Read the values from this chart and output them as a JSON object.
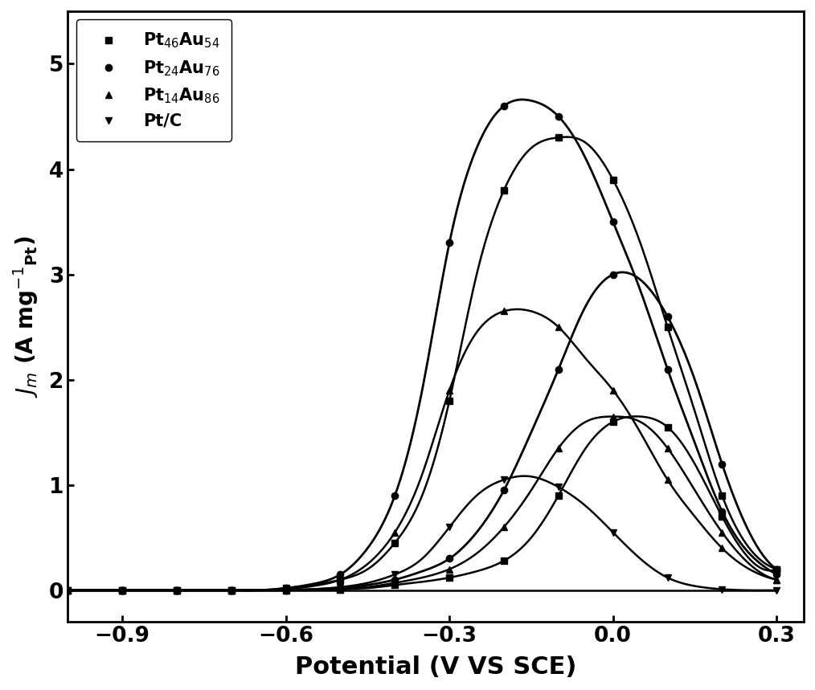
{
  "title": "",
  "xlabel": "Potential (V VS SCE)",
  "ylabel": "J_m (A mg^-1_Pt)",
  "xlim": [
    -1.0,
    0.35
  ],
  "ylim": [
    -0.3,
    5.5
  ],
  "xticks": [
    -0.9,
    -0.6,
    -0.3,
    0.0,
    0.3
  ],
  "yticks": [
    0,
    1,
    2,
    3,
    4,
    5
  ],
  "background_color": "#ffffff",
  "series": [
    {
      "label": "Pt$_{46}$Au$_{54}$",
      "color": "#000000",
      "marker": "s",
      "markersize": 6,
      "linewidth": 1.8,
      "linestyle": "-",
      "forward_x": [
        -1.0,
        -0.95,
        -0.9,
        -0.85,
        -0.8,
        -0.75,
        -0.7,
        -0.65,
        -0.6,
        -0.55,
        -0.5,
        -0.45,
        -0.4,
        -0.35,
        -0.3,
        -0.25,
        -0.2,
        -0.15,
        -0.1,
        -0.05,
        0.0,
        0.05,
        0.1,
        0.15,
        0.2,
        0.25,
        0.3
      ],
      "forward_y": [
        0.0,
        0.0,
        0.0,
        0.0,
        0.0,
        0.0,
        0.0,
        0.0,
        0.02,
        0.05,
        0.1,
        0.2,
        0.45,
        0.9,
        1.8,
        3.0,
        3.8,
        4.2,
        4.3,
        4.25,
        3.9,
        3.3,
        2.5,
        1.7,
        0.9,
        0.4,
        0.2
      ],
      "backward_x": [
        -1.0,
        -0.95,
        -0.9,
        -0.85,
        -0.8,
        -0.75,
        -0.7,
        -0.65,
        -0.6,
        -0.55,
        -0.5,
        -0.45,
        -0.4,
        -0.35,
        -0.3,
        -0.25,
        -0.2,
        -0.15,
        -0.1,
        -0.05,
        0.0,
        0.05,
        0.1,
        0.15,
        0.2,
        0.25,
        0.3
      ],
      "backward_y": [
        0.0,
        0.0,
        0.0,
        0.0,
        0.0,
        0.0,
        0.0,
        0.0,
        0.0,
        0.0,
        0.01,
        0.02,
        0.05,
        0.08,
        0.12,
        0.18,
        0.28,
        0.5,
        0.9,
        1.35,
        1.6,
        1.65,
        1.55,
        1.2,
        0.7,
        0.3,
        0.2
      ]
    },
    {
      "label": "Pt$_{24}$Au$_{76}$",
      "color": "#000000",
      "marker": "o",
      "markersize": 6,
      "linewidth": 2.0,
      "linestyle": "-",
      "forward_x": [
        -1.0,
        -0.95,
        -0.9,
        -0.85,
        -0.8,
        -0.75,
        -0.7,
        -0.65,
        -0.6,
        -0.55,
        -0.5,
        -0.45,
        -0.4,
        -0.35,
        -0.3,
        -0.25,
        -0.2,
        -0.15,
        -0.1,
        -0.05,
        0.0,
        0.05,
        0.1,
        0.15,
        0.2,
        0.25,
        0.3
      ],
      "forward_y": [
        0.0,
        0.0,
        0.0,
        0.0,
        0.0,
        0.0,
        0.0,
        0.0,
        0.02,
        0.06,
        0.15,
        0.4,
        0.9,
        1.9,
        3.3,
        4.2,
        4.6,
        4.65,
        4.5,
        4.1,
        3.5,
        2.85,
        2.1,
        1.4,
        0.75,
        0.35,
        0.15
      ],
      "backward_x": [
        -1.0,
        -0.95,
        -0.9,
        -0.85,
        -0.8,
        -0.75,
        -0.7,
        -0.65,
        -0.6,
        -0.55,
        -0.5,
        -0.45,
        -0.4,
        -0.35,
        -0.3,
        -0.25,
        -0.2,
        -0.15,
        -0.1,
        -0.05,
        0.0,
        0.05,
        0.1,
        0.15,
        0.2,
        0.25,
        0.3
      ],
      "backward_y": [
        0.0,
        0.0,
        0.0,
        0.0,
        0.0,
        0.0,
        0.0,
        0.0,
        0.0,
        0.01,
        0.02,
        0.05,
        0.1,
        0.18,
        0.3,
        0.55,
        0.95,
        1.5,
        2.1,
        2.7,
        3.0,
        2.95,
        2.6,
        2.0,
        1.2,
        0.55,
        0.2
      ]
    },
    {
      "label": "Pt$_{14}$Au$_{86}$",
      "color": "#000000",
      "marker": "^",
      "markersize": 6,
      "linewidth": 1.8,
      "linestyle": "-",
      "forward_x": [
        -1.0,
        -0.95,
        -0.9,
        -0.85,
        -0.8,
        -0.75,
        -0.7,
        -0.65,
        -0.6,
        -0.55,
        -0.5,
        -0.45,
        -0.4,
        -0.35,
        -0.3,
        -0.25,
        -0.2,
        -0.15,
        -0.1,
        -0.05,
        0.0,
        0.05,
        0.1,
        0.15,
        0.2,
        0.25,
        0.3
      ],
      "forward_y": [
        0.0,
        0.0,
        0.0,
        0.0,
        0.0,
        0.0,
        0.0,
        0.0,
        0.01,
        0.04,
        0.1,
        0.25,
        0.55,
        1.1,
        1.9,
        2.45,
        2.65,
        2.65,
        2.5,
        2.2,
        1.9,
        1.5,
        1.05,
        0.7,
        0.4,
        0.2,
        0.1
      ],
      "backward_x": [
        -1.0,
        -0.95,
        -0.9,
        -0.85,
        -0.8,
        -0.75,
        -0.7,
        -0.65,
        -0.6,
        -0.55,
        -0.5,
        -0.45,
        -0.4,
        -0.35,
        -0.3,
        -0.25,
        -0.2,
        -0.15,
        -0.1,
        -0.05,
        0.0,
        0.05,
        0.1,
        0.15,
        0.2,
        0.25,
        0.3
      ],
      "backward_y": [
        0.0,
        0.0,
        0.0,
        0.0,
        0.0,
        0.0,
        0.0,
        0.0,
        0.0,
        0.0,
        0.01,
        0.03,
        0.07,
        0.12,
        0.2,
        0.35,
        0.6,
        0.95,
        1.35,
        1.6,
        1.65,
        1.6,
        1.35,
        0.95,
        0.55,
        0.25,
        0.1
      ]
    },
    {
      "label": "Pt/C",
      "color": "#000000",
      "marker": "v",
      "markersize": 6,
      "linewidth": 1.8,
      "linestyle": "-",
      "forward_x": [
        -1.0,
        -0.95,
        -0.9,
        -0.85,
        -0.8,
        -0.75,
        -0.7,
        -0.65,
        -0.6,
        -0.55,
        -0.5,
        -0.45,
        -0.4,
        -0.35,
        -0.3,
        -0.25,
        -0.2,
        -0.15,
        -0.1,
        -0.05,
        0.0,
        0.05,
        0.1,
        0.15,
        0.2,
        0.25,
        0.3
      ],
      "forward_y": [
        0.0,
        0.0,
        0.0,
        0.0,
        0.0,
        0.0,
        0.0,
        0.0,
        0.0,
        0.01,
        0.03,
        0.07,
        0.15,
        0.3,
        0.6,
        0.9,
        1.05,
        1.08,
        0.98,
        0.8,
        0.55,
        0.3,
        0.12,
        0.04,
        0.01,
        0.0,
        0.0
      ],
      "backward_x": [
        -1.0,
        -0.95,
        -0.9,
        -0.85,
        -0.8,
        -0.75,
        -0.7,
        -0.65,
        -0.6,
        -0.55,
        -0.5,
        -0.45,
        -0.4,
        -0.35,
        -0.3,
        -0.25,
        -0.2,
        -0.15,
        -0.1,
        -0.05,
        0.0,
        0.05,
        0.1,
        0.15,
        0.2,
        0.25,
        0.3
      ],
      "backward_y": [
        0.0,
        0.0,
        0.0,
        0.0,
        0.0,
        0.0,
        0.0,
        0.0,
        0.0,
        0.0,
        0.0,
        0.0,
        0.0,
        0.0,
        0.0,
        0.0,
        0.0,
        0.0,
        0.0,
        0.0,
        0.0,
        0.0,
        0.0,
        0.0,
        0.0,
        0.0,
        0.0
      ]
    }
  ]
}
